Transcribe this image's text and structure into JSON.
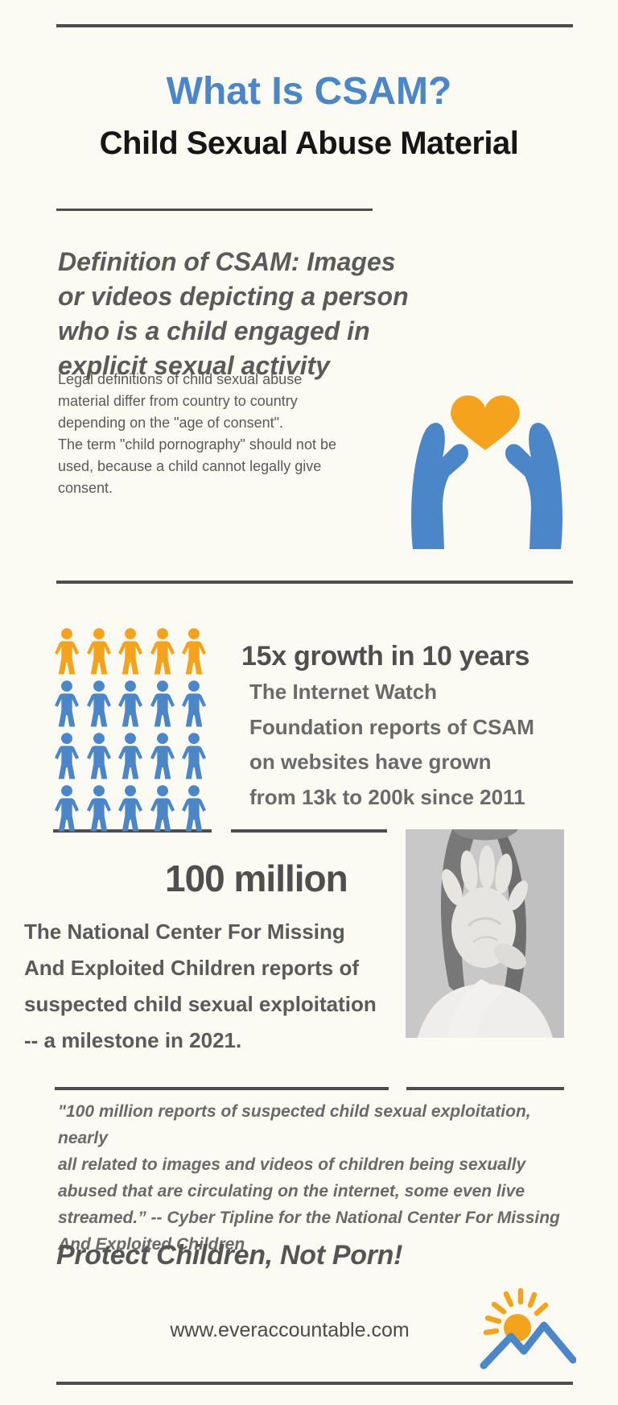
{
  "colors": {
    "background": "#fbfaf3",
    "rule": "#4d4d4d",
    "blue": "#4a86c8",
    "orange": "#f5a31d",
    "title_blue": "#4a86c8",
    "dark_text": "#161616",
    "gray_text": "#5a5a5a"
  },
  "header": {
    "title": "What Is CSAM?",
    "subtitle": "Child Sexual Abuse Material"
  },
  "definition": {
    "text": "Definition of CSAM: Images\nor videos depicting a person\nwho is a child engaged in\nexplicit sexual activity"
  },
  "legal": {
    "text": "Legal definitions of child sexual abuse\nmaterial differ from country to country\ndepending on the \"age of consent\".\nThe term \"child pornography\" should not be\nused, because a child cannot legally give\nconsent."
  },
  "icons": {
    "hero": "hands-holding-heart-icon",
    "pictograph_unit": "person-icon",
    "photo": "stop-hand-photo",
    "logo": "sun-over-mountains-icon"
  },
  "growth": {
    "heading": "15x growth in 10 years",
    "body": "The Internet Watch\nFoundation reports of CSAM\non websites have grown\nfrom 13k to 200k since 2011",
    "pictogram": {
      "per_row": 5,
      "rows": 4,
      "row_colors": [
        "#f5a31d",
        "#4a86c8",
        "#4a86c8",
        "#4a86c8"
      ]
    }
  },
  "milestone": {
    "stat": "100 million",
    "body": "The National Center For Missing\nAnd Exploited Children reports of\nsuspected child sexual exploitation\n-- a milestone in 2021."
  },
  "quote": {
    "text": "\"100 million reports of suspected child sexual exploitation, nearly\nall related to images and videos of children being sexually\nabused that are circulating on the internet, some even live\nstreamed.”  -- Cyber Tipline for the National Center For Missing\nAnd Exploited Children"
  },
  "cta": {
    "text": "Protect Children, Not Porn!"
  },
  "footer": {
    "website": "www.everaccountable.com"
  }
}
